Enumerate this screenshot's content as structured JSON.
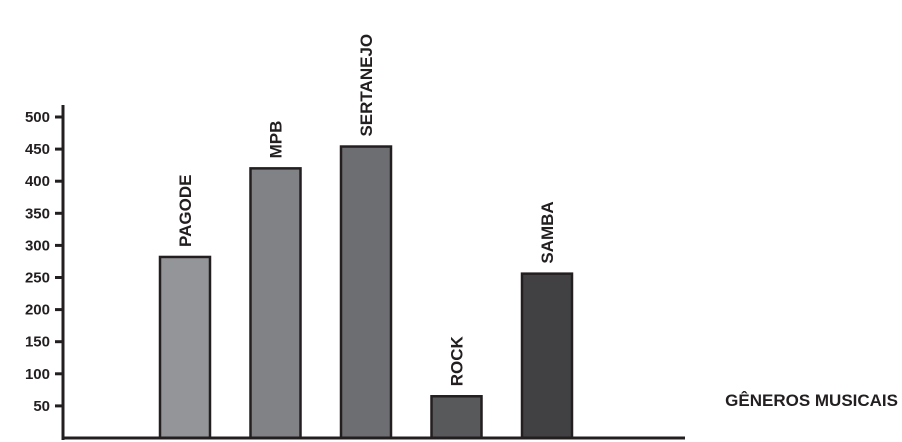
{
  "chart_data": {
    "type": "bar",
    "title": "",
    "xlabel": "GÊNEROS MUSICAIS",
    "ylabel": "",
    "categories": [
      "PAGODE",
      "MPB",
      "SERTANEJO",
      "ROCK",
      "SAMBA"
    ],
    "values": [
      282,
      420,
      454,
      65,
      256
    ],
    "ylim": [
      0,
      500
    ],
    "yticks": [
      50,
      100,
      150,
      200,
      250,
      300,
      350,
      400,
      450,
      500
    ],
    "grid": false,
    "colors": [
      "#939598",
      "#808285",
      "#6d6e71",
      "#58595b",
      "#414042"
    ],
    "border_color": "#231f20"
  }
}
